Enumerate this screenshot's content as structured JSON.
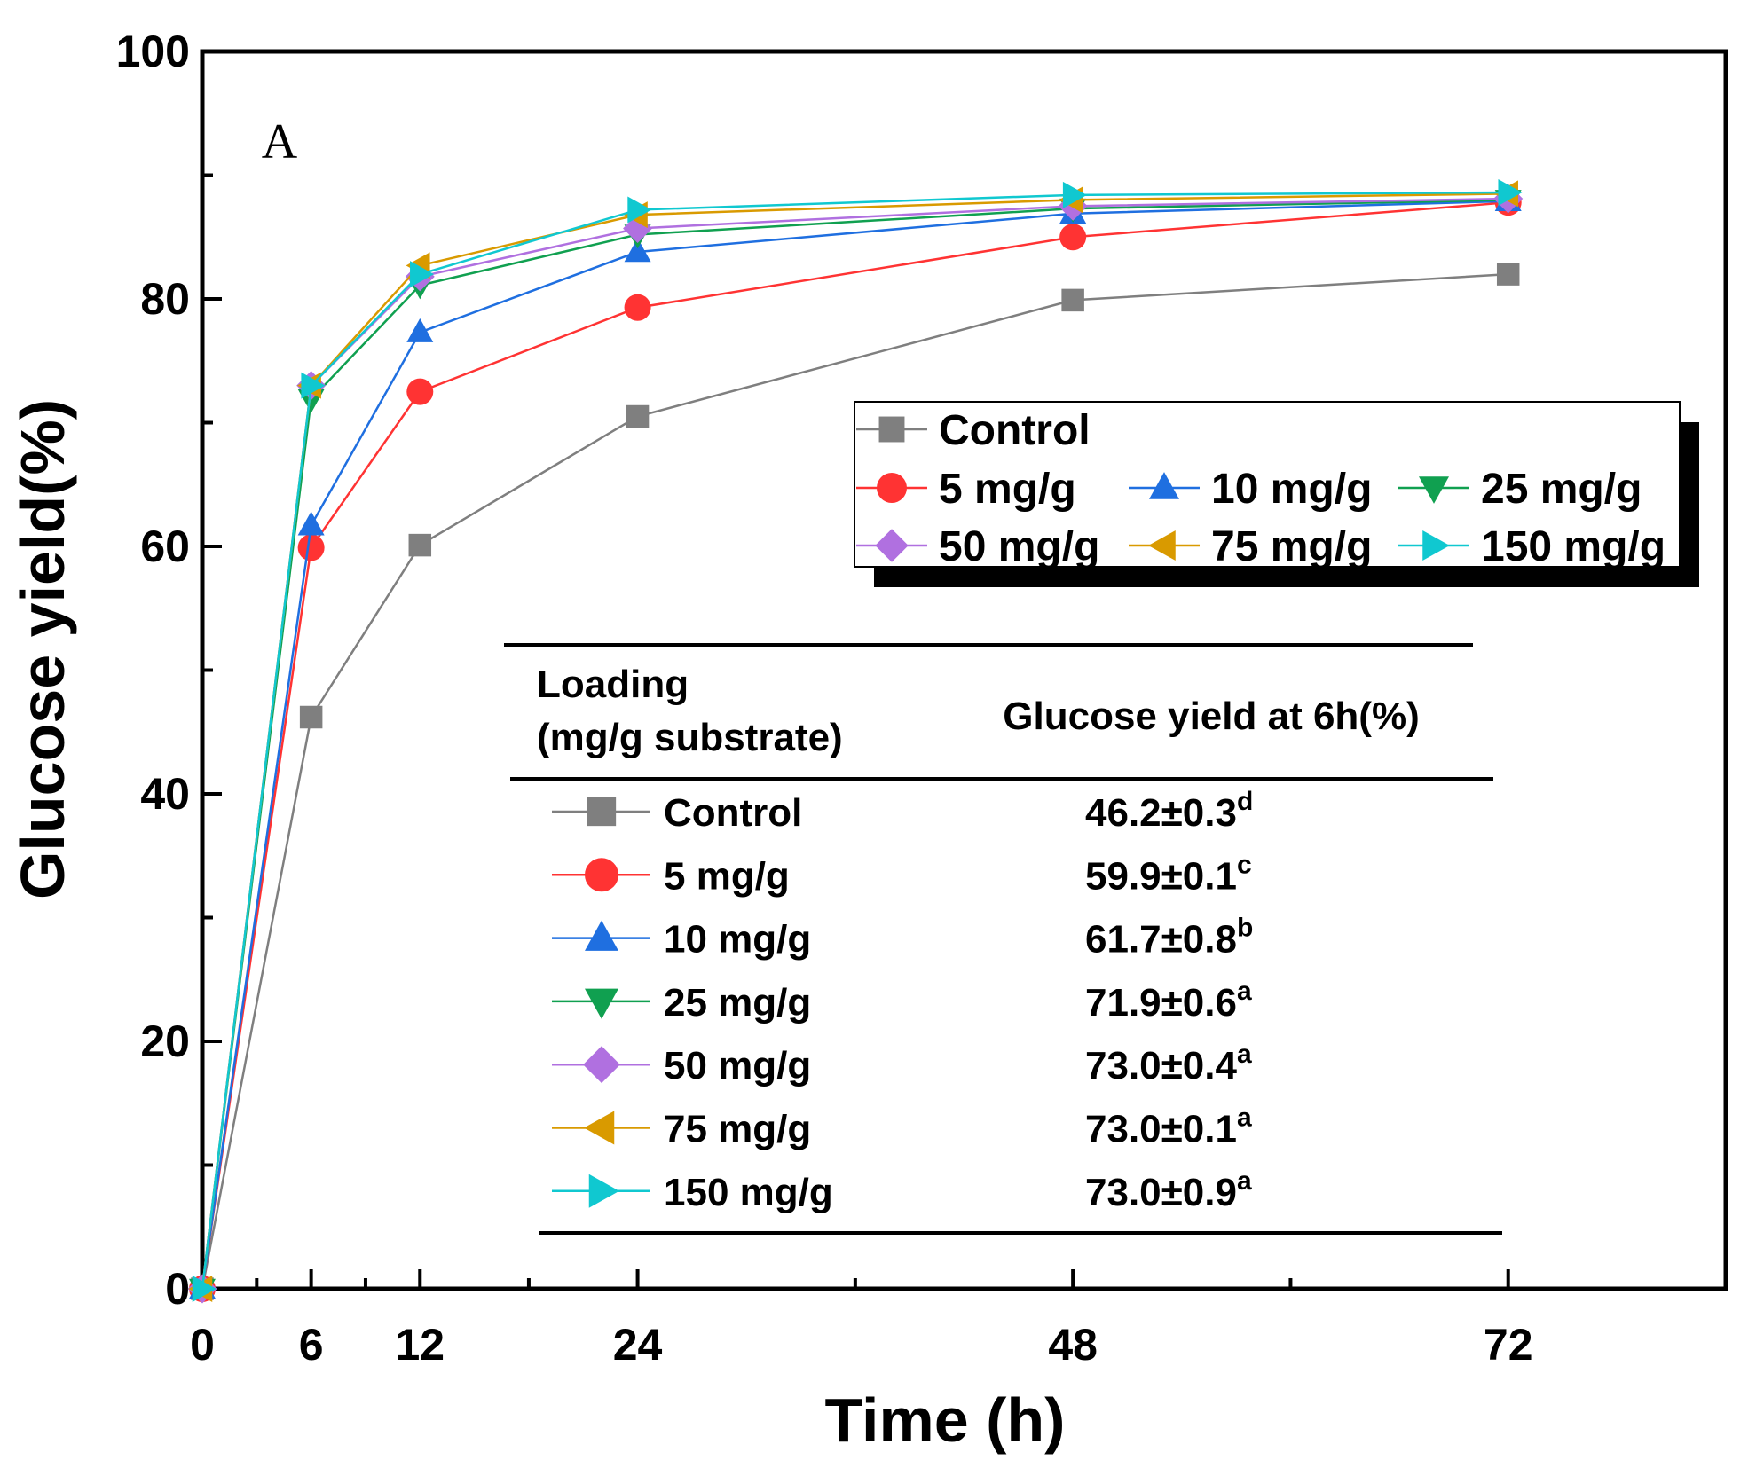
{
  "chart_data": {
    "type": "line",
    "panel_label": "A",
    "title": "",
    "xlabel": "Time (h)",
    "ylabel": "Glucose yield(%)",
    "xlim": [
      0,
      84
    ],
    "ylim": [
      0,
      100
    ],
    "x_ticks": [
      0,
      6,
      12,
      24,
      48,
      72
    ],
    "y_ticks": [
      0,
      20,
      40,
      60,
      80,
      100
    ],
    "x": [
      0,
      6,
      12,
      24,
      48,
      72
    ],
    "series": [
      {
        "name": "Control",
        "color": "#7f7f7f",
        "marker": "square",
        "values": [
          0,
          46.2,
          60.1,
          70.5,
          79.9,
          82.0
        ]
      },
      {
        "name": "5 mg/g",
        "color": "#ff3333",
        "marker": "circle",
        "values": [
          0,
          59.9,
          72.5,
          79.3,
          85.0,
          87.8
        ]
      },
      {
        "name": "10 mg/g",
        "color": "#1f6fe0",
        "marker": "triangle-up",
        "values": [
          0,
          61.7,
          77.3,
          83.8,
          86.9,
          87.9
        ]
      },
      {
        "name": "25 mg/g",
        "color": "#10a050",
        "marker": "triangle-down",
        "values": [
          0,
          71.9,
          81.1,
          85.2,
          87.3,
          88.0
        ]
      },
      {
        "name": "50 mg/g",
        "color": "#b070e0",
        "marker": "diamond",
        "values": [
          0,
          73.0,
          81.8,
          85.7,
          87.5,
          88.1
        ]
      },
      {
        "name": "75 mg/g",
        "color": "#d99a00",
        "marker": "triangle-left",
        "values": [
          0,
          73.0,
          82.7,
          86.8,
          88.0,
          88.5
        ]
      },
      {
        "name": "150 mg/g",
        "color": "#10c8d0",
        "marker": "triangle-right",
        "values": [
          0,
          73.0,
          82.0,
          87.2,
          88.4,
          88.6
        ]
      }
    ],
    "legend_position": "middle-right",
    "table": {
      "headers": [
        "Loading\n(mg/g substrate)",
        "Glucose yield at 6h(%)"
      ],
      "header_col1_lines": [
        "Loading",
        "(mg/g substrate)"
      ],
      "header_col2": "Glucose yield at 6h(%)",
      "rows": [
        {
          "label": "Control",
          "value": "46.2±0.3",
          "sup": "d"
        },
        {
          "label": "5 mg/g",
          "value": "59.9±0.1",
          "sup": "c"
        },
        {
          "label": "10 mg/g",
          "value": "61.7±0.8",
          "sup": "b"
        },
        {
          "label": "25 mg/g",
          "value": "71.9±0.6",
          "sup": "a"
        },
        {
          "label": "50 mg/g",
          "value": "73.0±0.4",
          "sup": "a"
        },
        {
          "label": "75 mg/g",
          "value": "73.0±0.1",
          "sup": "a"
        },
        {
          "label": "150 mg/g",
          "value": "73.0±0.9",
          "sup": "a"
        }
      ]
    }
  }
}
